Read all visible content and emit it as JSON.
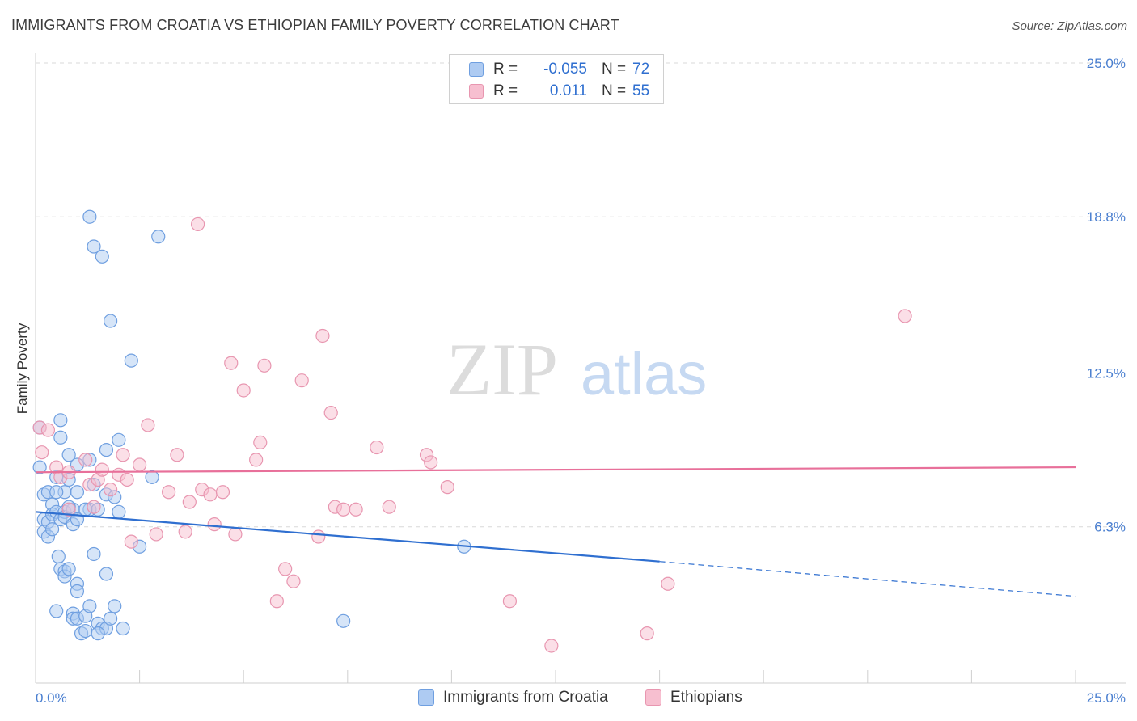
{
  "header": {
    "title": "IMMIGRANTS FROM CROATIA VS ETHIOPIAN FAMILY POVERTY CORRELATION CHART",
    "source": "Source: ZipAtlas.com"
  },
  "watermark": {
    "zip": "ZIP",
    "atlas": "atlas"
  },
  "legend": {
    "r_label": "R =",
    "n_label": "N =",
    "series1": {
      "r": "-0.055",
      "n": "72"
    },
    "series2": {
      "r": "0.011",
      "n": "55"
    }
  },
  "colors": {
    "blue_fill": "#aecbf2",
    "blue_stroke": "#6f9fe0",
    "blue_line": "#2f6fd0",
    "pink_fill": "#f7bfd0",
    "pink_stroke": "#e896b0",
    "pink_line": "#e8709a",
    "axis_label": "#4a7fd0",
    "grid": "#d8d8d8"
  },
  "chart_data": {
    "type": "scatter",
    "title": "IMMIGRANTS FROM CROATIA VS ETHIOPIAN FAMILY POVERTY CORRELATION CHART",
    "xlabel": "",
    "ylabel": "Family Poverty",
    "xlim": [
      0,
      25
    ],
    "ylim": [
      0,
      25
    ],
    "x_tick_labels": [
      "0.0%",
      "25.0%"
    ],
    "y_ticks": [
      6.3,
      12.5,
      18.8,
      25.0
    ],
    "y_tick_labels": [
      "6.3%",
      "12.5%",
      "18.8%",
      "25.0%"
    ],
    "grid": true,
    "series": [
      {
        "name": "Immigrants from Croatia",
        "color": "#6f9fe0",
        "regression": {
          "x": [
            0,
            15
          ],
          "y": [
            6.9,
            4.9
          ],
          "dashed_to": [
            25,
            3.5
          ]
        },
        "points": [
          [
            0.1,
            10.3
          ],
          [
            0.1,
            8.7
          ],
          [
            0.2,
            7.6
          ],
          [
            0.2,
            6.6
          ],
          [
            0.2,
            6.1
          ],
          [
            0.3,
            5.9
          ],
          [
            0.3,
            7.7
          ],
          [
            0.3,
            6.5
          ],
          [
            0.4,
            7.2
          ],
          [
            0.4,
            6.8
          ],
          [
            0.4,
            6.2
          ],
          [
            0.5,
            8.3
          ],
          [
            0.5,
            6.9
          ],
          [
            0.6,
            10.6
          ],
          [
            0.6,
            9.9
          ],
          [
            0.6,
            6.6
          ],
          [
            0.7,
            7.7
          ],
          [
            0.7,
            6.9
          ],
          [
            0.7,
            6.7
          ],
          [
            0.8,
            9.2
          ],
          [
            0.8,
            8.2
          ],
          [
            0.9,
            7.0
          ],
          [
            0.9,
            6.4
          ],
          [
            0.5,
            2.9
          ],
          [
            0.55,
            5.1
          ],
          [
            0.6,
            4.6
          ],
          [
            0.7,
            4.5
          ],
          [
            0.7,
            4.3
          ],
          [
            0.8,
            4.6
          ],
          [
            0.9,
            2.8
          ],
          [
            0.9,
            2.6
          ],
          [
            1.0,
            8.8
          ],
          [
            1.0,
            7.7
          ],
          [
            1.0,
            4.0
          ],
          [
            1.0,
            2.6
          ],
          [
            1.0,
            3.7
          ],
          [
            1.1,
            2.0
          ],
          [
            1.2,
            2.7
          ],
          [
            1.2,
            2.1
          ],
          [
            1.3,
            18.8
          ],
          [
            1.3,
            9.0
          ],
          [
            1.3,
            7.0
          ],
          [
            1.3,
            3.1
          ],
          [
            1.4,
            17.6
          ],
          [
            1.4,
            8.0
          ],
          [
            1.4,
            5.2
          ],
          [
            1.5,
            7.0
          ],
          [
            1.5,
            2.4
          ],
          [
            1.6,
            17.2
          ],
          [
            1.6,
            2.2
          ],
          [
            1.7,
            9.4
          ],
          [
            1.7,
            7.6
          ],
          [
            1.7,
            4.4
          ],
          [
            1.7,
            2.2
          ],
          [
            1.8,
            14.6
          ],
          [
            1.8,
            2.6
          ],
          [
            1.9,
            7.5
          ],
          [
            1.9,
            3.1
          ],
          [
            2.0,
            6.9
          ],
          [
            2.0,
            9.8
          ],
          [
            2.1,
            2.2
          ],
          [
            2.3,
            13.0
          ],
          [
            2.5,
            5.5
          ],
          [
            2.8,
            8.3
          ],
          [
            2.95,
            18.0
          ],
          [
            10.3,
            5.5
          ],
          [
            7.4,
            2.5
          ],
          [
            1.0,
            6.6
          ],
          [
            0.5,
            7.7
          ],
          [
            1.2,
            7.0
          ],
          [
            0.8,
            7.1
          ],
          [
            1.5,
            2.0
          ]
        ]
      },
      {
        "name": "Ethiopians",
        "color": "#e896b0",
        "regression": {
          "x": [
            0,
            25
          ],
          "y": [
            8.5,
            8.7
          ]
        },
        "points": [
          [
            0.1,
            10.3
          ],
          [
            0.15,
            9.3
          ],
          [
            0.3,
            10.2
          ],
          [
            0.5,
            8.7
          ],
          [
            0.6,
            8.3
          ],
          [
            0.8,
            7.0
          ],
          [
            0.8,
            8.5
          ],
          [
            1.2,
            9.0
          ],
          [
            1.3,
            8.0
          ],
          [
            1.4,
            7.1
          ],
          [
            1.5,
            8.2
          ],
          [
            1.6,
            8.6
          ],
          [
            1.8,
            7.8
          ],
          [
            2.0,
            8.4
          ],
          [
            2.1,
            9.2
          ],
          [
            2.2,
            8.2
          ],
          [
            2.3,
            5.7
          ],
          [
            2.5,
            8.8
          ],
          [
            2.7,
            10.4
          ],
          [
            2.9,
            6.0
          ],
          [
            3.2,
            7.7
          ],
          [
            3.4,
            9.2
          ],
          [
            3.6,
            6.1
          ],
          [
            3.7,
            7.3
          ],
          [
            3.9,
            18.5
          ],
          [
            4.0,
            7.8
          ],
          [
            4.2,
            7.6
          ],
          [
            4.3,
            6.4
          ],
          [
            4.5,
            7.7
          ],
          [
            4.8,
            6.0
          ],
          [
            4.7,
            12.9
          ],
          [
            5.0,
            11.8
          ],
          [
            5.3,
            9.0
          ],
          [
            5.4,
            9.7
          ],
          [
            5.5,
            12.8
          ],
          [
            5.8,
            3.3
          ],
          [
            6.0,
            4.6
          ],
          [
            6.2,
            4.1
          ],
          [
            6.4,
            12.2
          ],
          [
            6.8,
            5.9
          ],
          [
            6.9,
            14.0
          ],
          [
            7.1,
            10.9
          ],
          [
            7.2,
            7.1
          ],
          [
            7.4,
            7.0
          ],
          [
            7.7,
            7.0
          ],
          [
            8.2,
            9.5
          ],
          [
            8.5,
            7.1
          ],
          [
            9.4,
            9.2
          ],
          [
            9.5,
            8.9
          ],
          [
            9.9,
            7.9
          ],
          [
            11.4,
            3.3
          ],
          [
            12.4,
            1.5
          ],
          [
            14.7,
            2.0
          ],
          [
            15.2,
            4.0
          ],
          [
            20.9,
            14.8
          ]
        ]
      }
    ]
  },
  "bottom_legend": {
    "series1": "Immigrants from Croatia",
    "series2": "Ethiopians"
  }
}
